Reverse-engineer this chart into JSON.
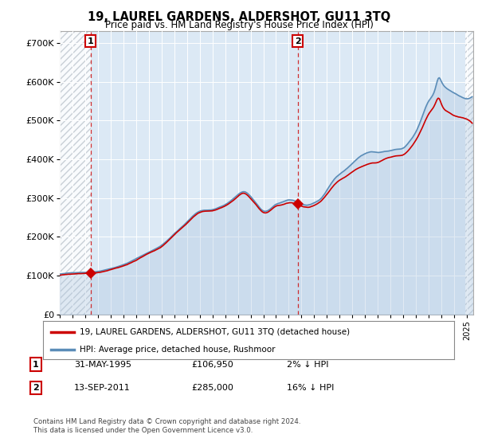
{
  "title": "19, LAUREL GARDENS, ALDERSHOT, GU11 3TQ",
  "subtitle": "Price paid vs. HM Land Registry's House Price Index (HPI)",
  "legend_label_red": "19, LAUREL GARDENS, ALDERSHOT, GU11 3TQ (detached house)",
  "legend_label_blue": "HPI: Average price, detached house, Rushmoor",
  "annotation1_date": "31-MAY-1995",
  "annotation1_price": "£106,950",
  "annotation1_hpi": "2% ↓ HPI",
  "annotation2_date": "13-SEP-2011",
  "annotation2_price": "£285,000",
  "annotation2_hpi": "16% ↓ HPI",
  "footnote": "Contains HM Land Registry data © Crown copyright and database right 2024.\nThis data is licensed under the Open Government Licence v3.0.",
  "background_color": "#ffffff",
  "plot_bg_color": "#dce9f5",
  "hatch_color": "#c0c8d0",
  "red_color": "#cc0000",
  "blue_color": "#5b8db8",
  "blue_fill_color": "#adc6e0",
  "ylim": [
    0,
    730000
  ],
  "yticks": [
    0,
    100000,
    200000,
    300000,
    400000,
    500000,
    600000,
    700000
  ],
  "ytick_labels": [
    "£0",
    "£100K",
    "£200K",
    "£300K",
    "£400K",
    "£500K",
    "£600K",
    "£700K"
  ],
  "sale1_year": 1995.42,
  "sale1_price": 106950,
  "sale2_year": 2011.71,
  "sale2_price": 285000,
  "xmin": 1993.0,
  "xmax": 2025.5
}
